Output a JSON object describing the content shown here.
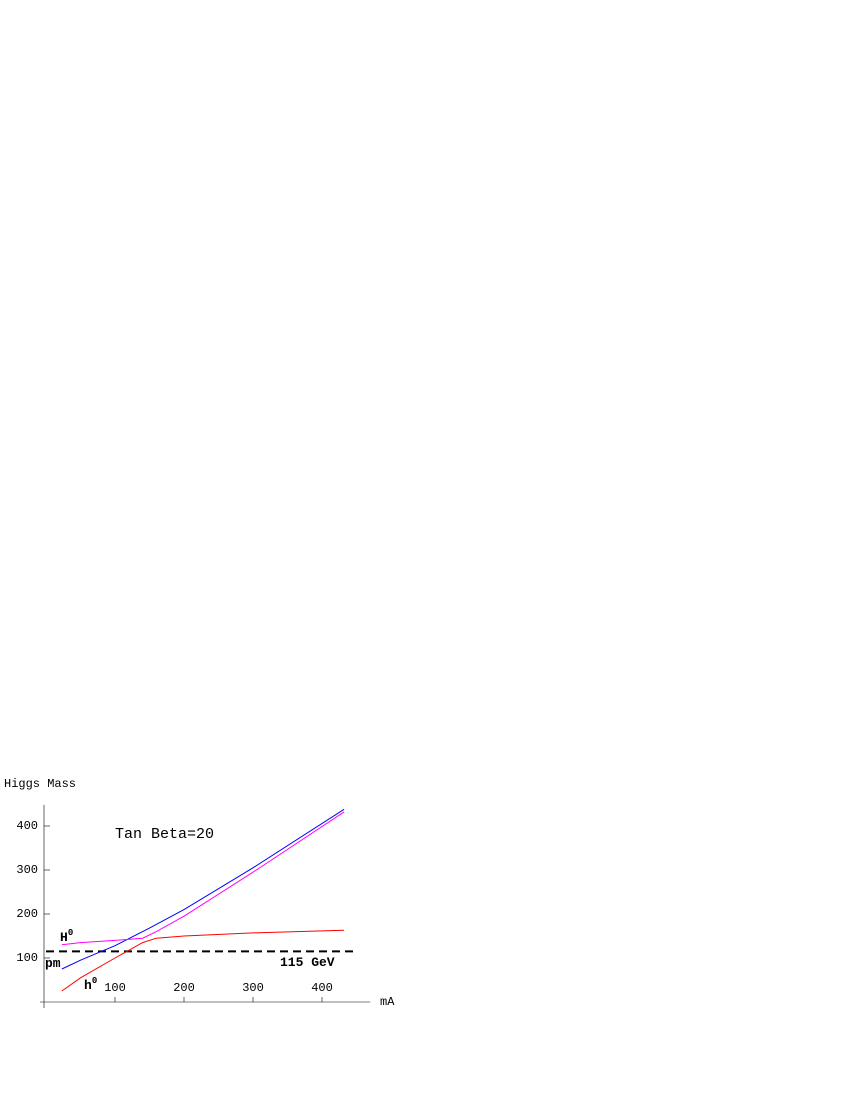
{
  "chart_data": {
    "type": "line",
    "title": "Tan Beta=20",
    "y_label": "Higgs Mass",
    "x_label": "mA",
    "xlim": [
      0,
      470
    ],
    "ylim": [
      0,
      448
    ],
    "xticks": [
      100,
      200,
      300,
      400
    ],
    "yticks": [
      100,
      200,
      300,
      400
    ],
    "series": [
      {
        "color": "#0000ff",
        "x": [
          23,
          50,
          80,
          100,
          150,
          200,
          300,
          432
        ],
        "values": [
          75,
          95,
          115,
          128,
          168,
          210,
          305,
          438
        ]
      },
      {
        "color": "#ff00ff",
        "x": [
          23,
          50,
          100,
          140,
          160,
          200,
          300,
          432
        ],
        "values": [
          130,
          135,
          140,
          145,
          160,
          195,
          295,
          432
        ]
      },
      {
        "color": "#ff0000",
        "x": [
          23,
          50,
          100,
          140,
          160,
          200,
          300,
          432
        ],
        "values": [
          25,
          55,
          100,
          135,
          145,
          150,
          157,
          163
        ]
      }
    ],
    "reference_line": {
      "value": 115,
      "label": "115 GeV",
      "x": [
        0,
        450
      ]
    },
    "annotations": [
      {
        "text": "H",
        "sup": "0"
      },
      {
        "text": "pm"
      },
      {
        "text": "h",
        "sup": "0"
      }
    ]
  }
}
